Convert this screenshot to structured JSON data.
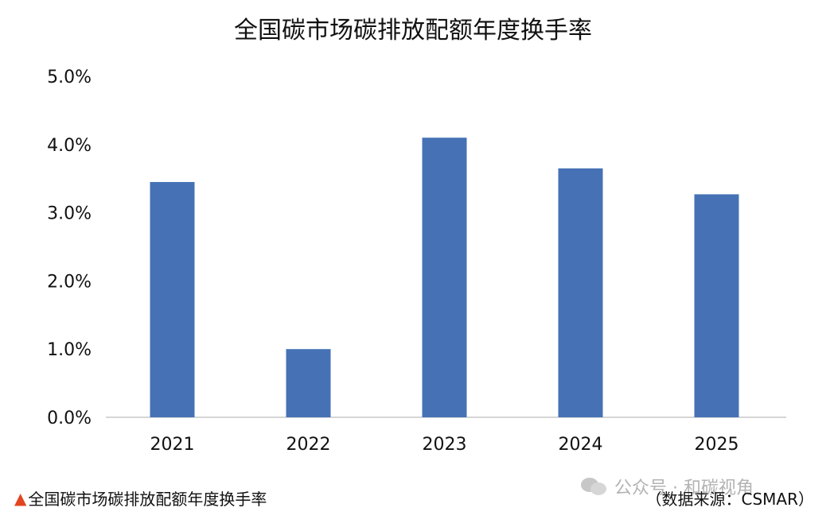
{
  "chart_data": {
    "type": "bar",
    "title": "全国碳市场碳排放配额年度换手率",
    "categories": [
      "2021",
      "2022",
      "2023",
      "2024",
      "2025"
    ],
    "values": [
      3.45,
      1.0,
      4.1,
      3.65,
      3.27
    ],
    "y_tick_labels": [
      "0.0%",
      "1.0%",
      "2.0%",
      "3.0%",
      "4.0%",
      "5.0%"
    ],
    "ylim": [
      0,
      5
    ],
    "bar_color": "#4672b5",
    "grid": false,
    "legend": "none"
  },
  "caption": {
    "marker": "▲",
    "marker_color": "#e2451f",
    "text": "全国碳市场碳排放配额年度换手率"
  },
  "source": "（数据来源：CSMAR）",
  "watermark": {
    "icon": "wechat-icon",
    "text": "公众号 · 和碳视角"
  }
}
